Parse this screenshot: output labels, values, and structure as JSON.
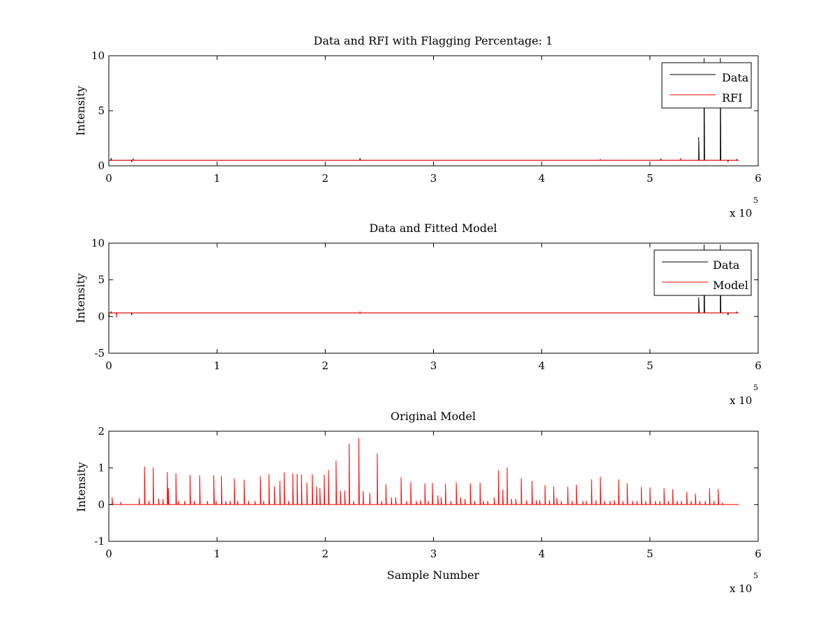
{
  "chart_data": [
    {
      "type": "line",
      "title": "Data and RFI with Flagging Percentage: 1",
      "xlabel": "",
      "ylabel": "Intensity",
      "xlim": [
        0,
        600000
      ],
      "ylim": [
        0,
        10
      ],
      "x_ticks": [
        0,
        1,
        2,
        3,
        4,
        5,
        6
      ],
      "y_ticks": [
        0,
        5,
        10
      ],
      "x_multiplier": "x 10",
      "x_multiplier_exp": "5",
      "legend_position": "top-right",
      "grid": false,
      "series": [
        {
          "name": "Data",
          "color": "#000000",
          "baseline": 0.5,
          "x_extent": [
            0,
            582000
          ],
          "spikes": [
            [
              2000,
              0.7
            ],
            [
              21000,
              0.35
            ],
            [
              22500,
              0.65
            ],
            [
              232000,
              0.7
            ],
            [
              510000,
              0.65
            ],
            [
              545000,
              2.6
            ],
            [
              550000,
              9.8
            ],
            [
              565000,
              9.8
            ],
            [
              572000,
              0.35
            ],
            [
              580000,
              0.6
            ]
          ]
        },
        {
          "name": "RFI",
          "color": "#ff0000",
          "baseline": 0.5,
          "x_extent": [
            0,
            582000
          ],
          "spikes": [
            [
              454000,
              0.6
            ],
            [
              528000,
              0.7
            ]
          ]
        }
      ]
    },
    {
      "type": "line",
      "title": "Data and Fitted Model",
      "xlabel": "",
      "ylabel": "Intensity",
      "xlim": [
        0,
        600000
      ],
      "ylim": [
        -5,
        10
      ],
      "x_ticks": [
        0,
        1,
        2,
        3,
        4,
        5,
        6
      ],
      "y_ticks": [
        -5,
        0,
        5,
        10
      ],
      "x_multiplier": "x 10",
      "x_multiplier_exp": "5",
      "legend_position": "top-right",
      "grid": false,
      "series": [
        {
          "name": "Data",
          "color": "#000000",
          "baseline": 0.5,
          "x_extent": [
            0,
            582000
          ],
          "spikes": [
            [
              2000,
              0.7
            ],
            [
              21000,
              0.2
            ],
            [
              545000,
              2.6
            ],
            [
              550000,
              9.8
            ],
            [
              565000,
              9.8
            ],
            [
              572000,
              0.2
            ],
            [
              580000,
              0.6
            ]
          ]
        },
        {
          "name": "Model",
          "color": "#ff0000",
          "baseline": 0.5,
          "x_extent": [
            0,
            582000
          ],
          "spikes": [
            [
              100,
              -0.1
            ],
            [
              7000,
              -0.1
            ],
            [
              232000,
              0.7
            ]
          ]
        }
      ]
    },
    {
      "type": "line",
      "title": "Original Model",
      "xlabel": "Sample Number",
      "ylabel": "Intensity",
      "xlim": [
        0,
        600000
      ],
      "ylim": [
        -1,
        2
      ],
      "x_ticks": [
        0,
        1,
        2,
        3,
        4,
        5,
        6
      ],
      "y_ticks": [
        -1,
        0,
        1,
        2
      ],
      "x_multiplier": "x 10",
      "x_multiplier_exp": "5",
      "legend_position": "none",
      "grid": false,
      "series": [
        {
          "name": "",
          "color": "#ff0000",
          "baseline": 0,
          "x_extent": [
            0,
            582000
          ],
          "spikes": [
            [
              3000,
              0.2
            ],
            [
              11000,
              0.07
            ],
            [
              28000,
              0.18
            ],
            [
              33000,
              1.04
            ],
            [
              37000,
              0.1
            ],
            [
              41000,
              1.01
            ],
            [
              46000,
              0.16
            ],
            [
              50000,
              0.15
            ],
            [
              54000,
              0.89
            ],
            [
              55000,
              0.45
            ],
            [
              62000,
              0.86
            ],
            [
              64000,
              0.1
            ],
            [
              70000,
              0.1
            ],
            [
              75000,
              0.81
            ],
            [
              79000,
              0.1
            ],
            [
              84000,
              0.8
            ],
            [
              91000,
              0.1
            ],
            [
              97000,
              0.8
            ],
            [
              99000,
              0.1
            ],
            [
              104000,
              0.78
            ],
            [
              108000,
              0.1
            ],
            [
              112000,
              0.1
            ],
            [
              116000,
              0.71
            ],
            [
              119000,
              0.1
            ],
            [
              125000,
              0.68
            ],
            [
              129000,
              0.1
            ],
            [
              135000,
              0.1
            ],
            [
              140000,
              0.77
            ],
            [
              143000,
              0.1
            ],
            [
              148000,
              0.83
            ],
            [
              153000,
              0.5
            ],
            [
              158000,
              0.65
            ],
            [
              162000,
              0.88
            ],
            [
              166000,
              0.1
            ],
            [
              170000,
              0.85
            ],
            [
              174000,
              0.84
            ],
            [
              178000,
              0.82
            ],
            [
              183000,
              0.6
            ],
            [
              188000,
              0.83
            ],
            [
              192000,
              0.49
            ],
            [
              195000,
              0.45
            ],
            [
              199000,
              0.82
            ],
            [
              203000,
              0.95
            ],
            [
              210000,
              1.2
            ],
            [
              214000,
              0.38
            ],
            [
              218000,
              0.38
            ],
            [
              222000,
              1.66
            ],
            [
              226000,
              0.1
            ],
            [
              231000,
              1.82
            ],
            [
              235000,
              0.37
            ],
            [
              241000,
              0.32
            ],
            [
              248000,
              1.39
            ],
            [
              252000,
              0.1
            ],
            [
              256000,
              0.56
            ],
            [
              261000,
              0.2
            ],
            [
              265000,
              0.2
            ],
            [
              270000,
              0.74
            ],
            [
              275000,
              0.1
            ],
            [
              279000,
              0.62
            ],
            [
              284000,
              0.1
            ],
            [
              288000,
              0.12
            ],
            [
              292000,
              0.58
            ],
            [
              295000,
              0.1
            ],
            [
              299000,
              0.59
            ],
            [
              304000,
              0.25
            ],
            [
              307000,
              0.2
            ],
            [
              311000,
              0.56
            ],
            [
              316000,
              0.1
            ],
            [
              321000,
              0.61
            ],
            [
              325000,
              0.2
            ],
            [
              329000,
              0.15
            ],
            [
              334000,
              0.58
            ],
            [
              338000,
              0.1
            ],
            [
              343000,
              0.6
            ],
            [
              346000,
              0.1
            ],
            [
              350000,
              0.1
            ],
            [
              356000,
              0.2
            ],
            [
              360000,
              0.93
            ],
            [
              364000,
              0.41
            ],
            [
              368000,
              1.01
            ],
            [
              372000,
              0.16
            ],
            [
              376000,
              0.16
            ],
            [
              381000,
              0.72
            ],
            [
              386000,
              0.12
            ],
            [
              391000,
              0.65
            ],
            [
              395000,
              0.12
            ],
            [
              398000,
              0.12
            ],
            [
              403000,
              0.53
            ],
            [
              407000,
              0.12
            ],
            [
              411000,
              0.49
            ],
            [
              414000,
              0.18
            ],
            [
              418000,
              0.1
            ],
            [
              424000,
              0.49
            ],
            [
              428000,
              0.1
            ],
            [
              432000,
              0.54
            ],
            [
              438000,
              0.1
            ],
            [
              441000,
              0.1
            ],
            [
              446000,
              0.69
            ],
            [
              450000,
              0.12
            ],
            [
              454000,
              0.75
            ],
            [
              458000,
              0.1
            ],
            [
              463000,
              0.1
            ],
            [
              467000,
              0.12
            ],
            [
              471000,
              0.69
            ],
            [
              475000,
              0.1
            ],
            [
              479000,
              0.58
            ],
            [
              484000,
              0.1
            ],
            [
              488000,
              0.1
            ],
            [
              492000,
              0.48
            ],
            [
              496000,
              0.1
            ],
            [
              500000,
              0.47
            ],
            [
              505000,
              0.1
            ],
            [
              509000,
              0.1
            ],
            [
              513000,
              0.45
            ],
            [
              517000,
              0.1
            ],
            [
              521000,
              0.42
            ],
            [
              525000,
              0.1
            ],
            [
              529000,
              0.1
            ],
            [
              534000,
              0.34
            ],
            [
              538000,
              0.1
            ],
            [
              542000,
              0.3
            ],
            [
              546000,
              0.1
            ],
            [
              551000,
              0.1
            ],
            [
              555000,
              0.45
            ],
            [
              559000,
              0.1
            ],
            [
              563000,
              0.43
            ],
            [
              567000,
              0.05
            ]
          ]
        }
      ]
    }
  ]
}
